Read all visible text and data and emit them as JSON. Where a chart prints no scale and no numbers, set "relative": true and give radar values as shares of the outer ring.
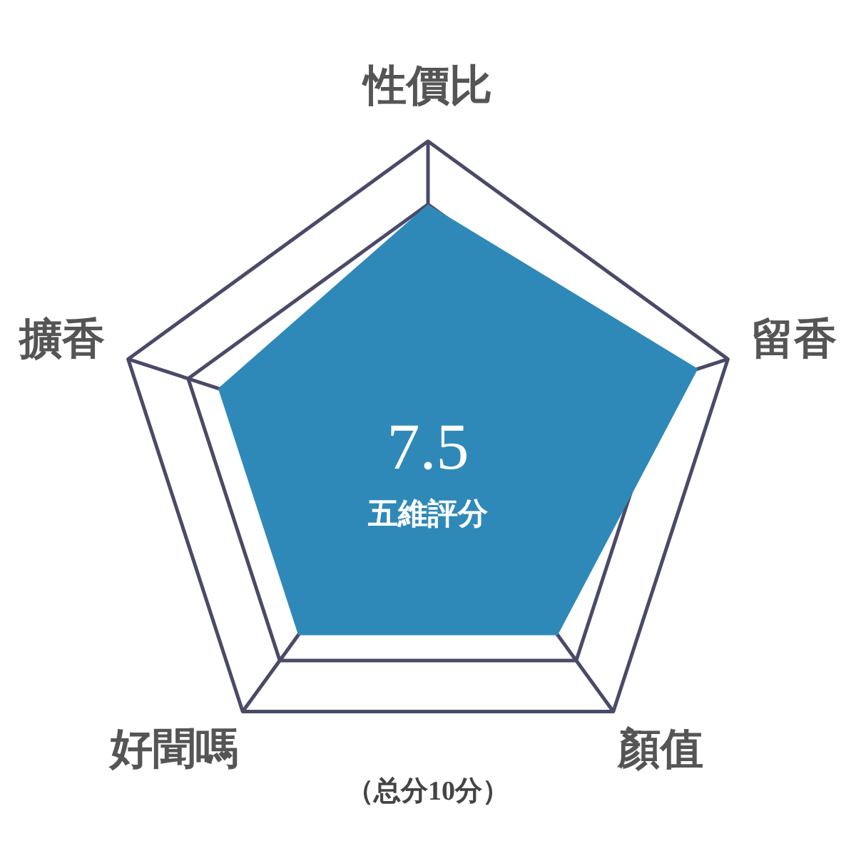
{
  "chart_data": {
    "type": "radar",
    "categories": [
      "性價比",
      "留香",
      "顏值",
      "好聞嗎",
      "擴香"
    ],
    "series": [
      {
        "color": "#2e89b9",
        "values": [
          0.8,
          0.9,
          0.7,
          0.7,
          0.7
        ]
      }
    ],
    "relative": true,
    "grid": true,
    "annotations": [
      "7.5",
      "五維評分",
      "（总分10分）"
    ]
  }
}
